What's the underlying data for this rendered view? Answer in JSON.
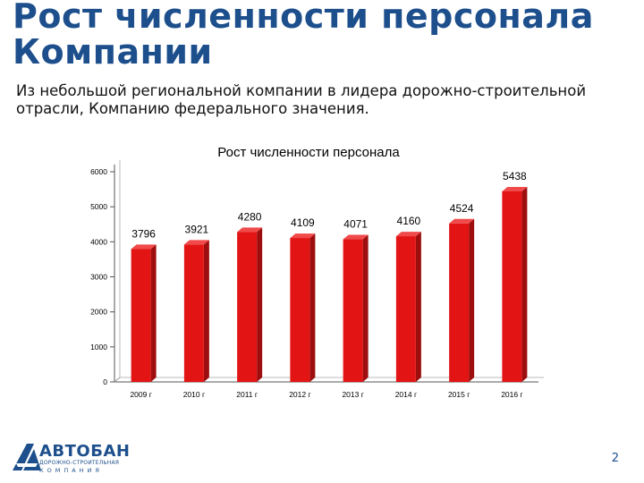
{
  "slide": {
    "title_line1": "Рост численности персонала",
    "title_line2": "Компании",
    "subtitle_line1": "Из небольшой региональной компании в лидера дорожно-строительной",
    "subtitle_line2": "отрасли, Компанию федерального значения.",
    "page_number": "2"
  },
  "logo": {
    "name": "АВТОБАН",
    "sub1": "ДОРОЖНО-СТРОИТЕЛЬНАЯ",
    "sub2": "КОМПАНИЯ"
  },
  "chart_data": {
    "type": "bar",
    "title": "Рост численности персонала",
    "categories": [
      "2009 г",
      "2010 г",
      "2011 г",
      "2012 г",
      "2013 г",
      "2014 г",
      "2015 г",
      "2016 г"
    ],
    "values": [
      3796,
      3921,
      4280,
      4109,
      4071,
      4160,
      4524,
      5438
    ],
    "ylim": [
      0,
      6000
    ],
    "yticks": [
      0,
      1000,
      2000,
      3000,
      4000,
      5000,
      6000
    ],
    "bar_color": "#e31414",
    "grid": false,
    "legend": false
  }
}
